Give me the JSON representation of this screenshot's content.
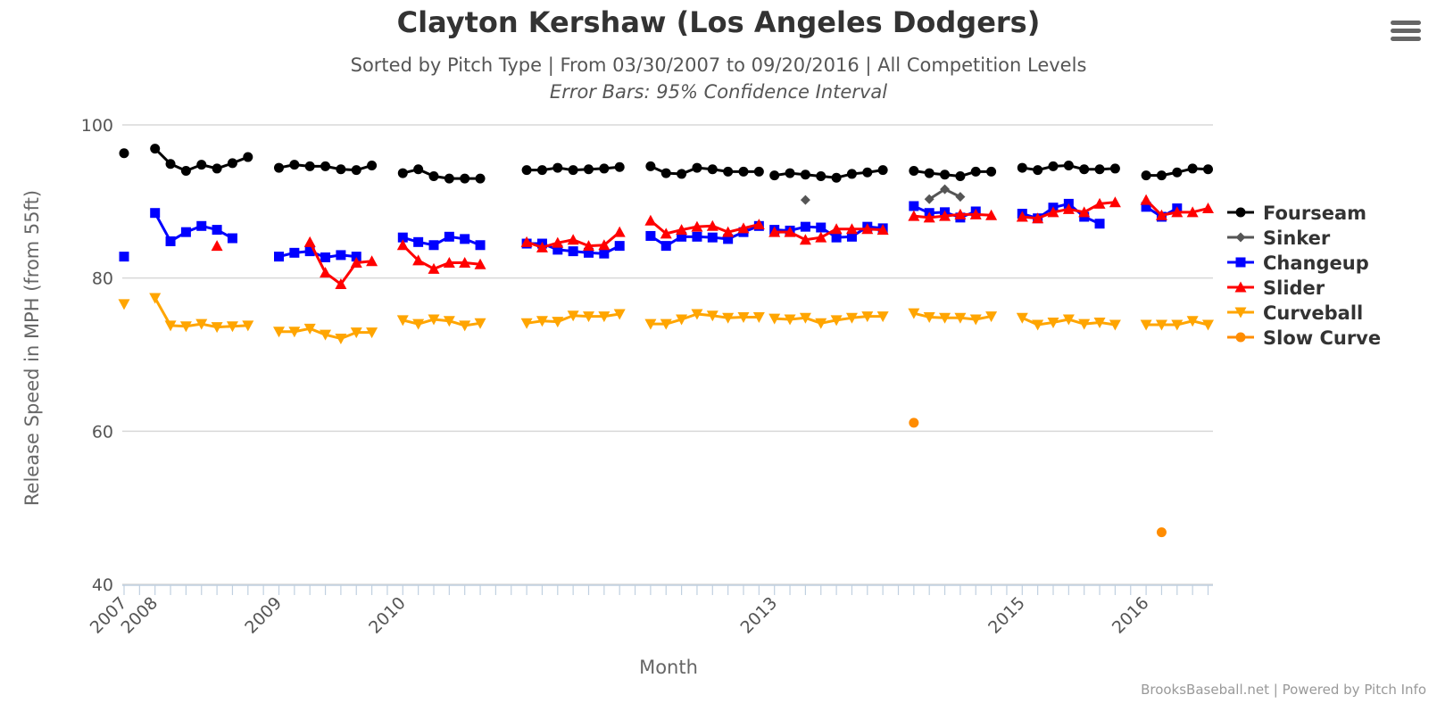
{
  "menu": {
    "icon": "hamburger-menu-icon"
  },
  "credits": "BrooksBaseball.net | Powered by Pitch Info",
  "chart_data": {
    "type": "line",
    "title": "Clayton Kershaw (Los Angeles Dodgers)",
    "subtitle": "Sorted by Pitch Type | From 03/30/2007 to 09/20/2016 | All Competition Levels",
    "subtitle2": "Error Bars: 95% Confidence Interval",
    "xlabel": "Month",
    "ylabel": "Release Speed in MPH (from 55ft)",
    "ylim": [
      40,
      100
    ],
    "yticks": [
      40,
      60,
      80,
      100
    ],
    "grid": true,
    "legend_position": "right",
    "x_slot_count": 70,
    "year_labels": [
      {
        "label": "2007",
        "slot": 0
      },
      {
        "label": "2008",
        "slot": 2
      },
      {
        "label": "2009",
        "slot": 10
      },
      {
        "label": "2010",
        "slot": 18
      },
      {
        "label": "2013",
        "slot": 42
      },
      {
        "label": "2015",
        "slot": 58
      },
      {
        "label": "2016",
        "slot": 66
      }
    ],
    "series": [
      {
        "name": "Fourseam",
        "color": "#000000",
        "marker": "circle",
        "segments": [
          [
            [
              0,
              96.3
            ]
          ],
          [
            [
              2,
              96.9
            ],
            [
              3,
              94.9
            ],
            [
              4,
              94.0
            ],
            [
              5,
              94.8
            ],
            [
              6,
              94.3
            ],
            [
              7,
              95.0
            ],
            [
              8,
              95.8
            ]
          ],
          [
            [
              10,
              94.4
            ],
            [
              11,
              94.8
            ],
            [
              12,
              94.6
            ],
            [
              13,
              94.6
            ],
            [
              14,
              94.2
            ],
            [
              15,
              94.1
            ],
            [
              16,
              94.7
            ]
          ],
          [
            [
              18,
              93.7
            ],
            [
              19,
              94.2
            ],
            [
              20,
              93.3
            ],
            [
              21,
              93.0
            ],
            [
              22,
              93.0
            ],
            [
              23,
              93.0
            ]
          ],
          [
            [
              26,
              94.1
            ],
            [
              27,
              94.1
            ],
            [
              28,
              94.4
            ],
            [
              29,
              94.1
            ],
            [
              30,
              94.2
            ],
            [
              31,
              94.3
            ],
            [
              32,
              94.5
            ]
          ],
          [
            [
              34,
              94.6
            ],
            [
              35,
              93.7
            ],
            [
              36,
              93.6
            ],
            [
              37,
              94.4
            ],
            [
              38,
              94.2
            ],
            [
              39,
              93.9
            ],
            [
              40,
              93.9
            ],
            [
              41,
              93.9
            ]
          ],
          [
            [
              42,
              93.4
            ],
            [
              43,
              93.7
            ],
            [
              44,
              93.5
            ],
            [
              45,
              93.3
            ],
            [
              46,
              93.1
            ],
            [
              47,
              93.6
            ],
            [
              48,
              93.8
            ],
            [
              49,
              94.1
            ]
          ],
          [
            [
              51,
              94.0
            ],
            [
              52,
              93.7
            ],
            [
              53,
              93.5
            ],
            [
              54,
              93.3
            ],
            [
              55,
              93.9
            ],
            [
              56,
              93.9
            ]
          ],
          [
            [
              58,
              94.4
            ],
            [
              59,
              94.1
            ],
            [
              60,
              94.6
            ],
            [
              61,
              94.7
            ],
            [
              62,
              94.2
            ],
            [
              63,
              94.2
            ],
            [
              64,
              94.3
            ]
          ],
          [
            [
              66,
              93.4
            ],
            [
              67,
              93.4
            ],
            [
              68,
              93.8
            ],
            [
              69,
              94.3
            ],
            [
              70,
              94.2
            ]
          ]
        ]
      },
      {
        "name": "Sinker",
        "color": "#555555",
        "marker": "diamond",
        "segments": [
          [
            [
              44,
              90.2
            ]
          ],
          [
            [
              52,
              90.3
            ],
            [
              53,
              91.6
            ],
            [
              54,
              90.6
            ]
          ]
        ]
      },
      {
        "name": "Changeup",
        "color": "#0000ff",
        "marker": "square",
        "segments": [
          [
            [
              0,
              82.8
            ]
          ],
          [
            [
              2,
              88.5
            ],
            [
              3,
              84.8
            ],
            [
              4,
              86.0
            ],
            [
              5,
              86.8
            ],
            [
              6,
              86.3
            ],
            [
              7,
              85.2
            ]
          ],
          [
            [
              10,
              82.8
            ],
            [
              11,
              83.3
            ],
            [
              12,
              83.5
            ],
            [
              13,
              82.7
            ],
            [
              14,
              83.0
            ],
            [
              15,
              82.8
            ]
          ],
          [
            [
              18,
              85.3
            ],
            [
              19,
              84.7
            ],
            [
              20,
              84.3
            ],
            [
              21,
              85.4
            ],
            [
              22,
              85.1
            ],
            [
              23,
              84.3
            ]
          ],
          [
            [
              26,
              84.5
            ],
            [
              27,
              84.5
            ],
            [
              28,
              83.7
            ],
            [
              29,
              83.5
            ],
            [
              30,
              83.3
            ],
            [
              31,
              83.2
            ],
            [
              32,
              84.2
            ]
          ],
          [
            [
              34,
              85.5
            ],
            [
              35,
              84.2
            ],
            [
              36,
              85.4
            ],
            [
              37,
              85.4
            ],
            [
              38,
              85.3
            ],
            [
              39,
              85.1
            ],
            [
              40,
              86.0
            ],
            [
              41,
              86.8
            ]
          ],
          [
            [
              42,
              86.3
            ],
            [
              43,
              86.2
            ],
            [
              44,
              86.7
            ],
            [
              45,
              86.6
            ],
            [
              46,
              85.3
            ],
            [
              47,
              85.4
            ],
            [
              48,
              86.7
            ],
            [
              49,
              86.5
            ]
          ],
          [
            [
              51,
              89.4
            ],
            [
              52,
              88.5
            ],
            [
              53,
              88.6
            ],
            [
              54,
              87.9
            ],
            [
              55,
              88.7
            ]
          ],
          [
            [
              58,
              88.4
            ],
            [
              59,
              87.8
            ],
            [
              60,
              89.2
            ],
            [
              61,
              89.7
            ],
            [
              62,
              88.0
            ],
            [
              63,
              87.1
            ]
          ],
          [
            [
              66,
              89.3
            ],
            [
              67,
              88.0
            ],
            [
              68,
              89.1
            ]
          ]
        ]
      },
      {
        "name": "Slider",
        "color": "#ff0000",
        "marker": "triangle",
        "segments": [
          [
            [
              6,
              84.2
            ]
          ],
          [
            [
              12,
              84.7
            ],
            [
              13,
              80.7
            ],
            [
              14,
              79.2
            ],
            [
              15,
              82.0
            ],
            [
              16,
              82.2
            ]
          ],
          [
            [
              18,
              84.3
            ],
            [
              19,
              82.3
            ],
            [
              20,
              81.2
            ],
            [
              21,
              82.0
            ],
            [
              22,
              82.0
            ],
            [
              23,
              81.8
            ]
          ],
          [
            [
              26,
              84.7
            ],
            [
              27,
              84.0
            ],
            [
              28,
              84.6
            ],
            [
              29,
              85.0
            ],
            [
              30,
              84.2
            ],
            [
              31,
              84.3
            ],
            [
              32,
              86.0
            ]
          ],
          [
            [
              34,
              87.5
            ],
            [
              35,
              85.8
            ],
            [
              36,
              86.3
            ],
            [
              37,
              86.7
            ],
            [
              38,
              86.8
            ],
            [
              39,
              86.0
            ],
            [
              40,
              86.5
            ],
            [
              41,
              87.0
            ]
          ],
          [
            [
              42,
              86.0
            ],
            [
              43,
              86.0
            ],
            [
              44,
              85.0
            ],
            [
              45,
              85.3
            ],
            [
              46,
              86.4
            ],
            [
              47,
              86.4
            ],
            [
              48,
              86.4
            ],
            [
              49,
              86.3
            ]
          ],
          [
            [
              51,
              88.1
            ],
            [
              52,
              87.9
            ],
            [
              53,
              88.1
            ],
            [
              54,
              88.3
            ],
            [
              55,
              88.3
            ],
            [
              56,
              88.2
            ]
          ],
          [
            [
              58,
              88.0
            ],
            [
              59,
              87.8
            ],
            [
              60,
              88.6
            ],
            [
              61,
              89.0
            ],
            [
              62,
              88.6
            ],
            [
              63,
              89.7
            ],
            [
              64,
              89.9
            ]
          ],
          [
            [
              66,
              90.2
            ],
            [
              67,
              88.2
            ],
            [
              68,
              88.6
            ],
            [
              69,
              88.6
            ],
            [
              70,
              89.1
            ]
          ]
        ]
      },
      {
        "name": "Curveball",
        "color": "#ffa500",
        "marker": "triangle-down",
        "segments": [
          [
            [
              0,
              76.6
            ]
          ],
          [
            [
              2,
              77.4
            ],
            [
              3,
              73.8
            ],
            [
              4,
              73.7
            ],
            [
              5,
              74.0
            ],
            [
              6,
              73.6
            ],
            [
              7,
              73.7
            ],
            [
              8,
              73.8
            ]
          ],
          [
            [
              10,
              73.0
            ],
            [
              11,
              73.0
            ],
            [
              12,
              73.4
            ],
            [
              13,
              72.6
            ],
            [
              14,
              72.1
            ],
            [
              15,
              72.9
            ],
            [
              16,
              72.9
            ]
          ],
          [
            [
              18,
              74.5
            ],
            [
              19,
              74.0
            ],
            [
              20,
              74.6
            ],
            [
              21,
              74.4
            ],
            [
              22,
              73.8
            ],
            [
              23,
              74.1
            ]
          ],
          [
            [
              26,
              74.1
            ],
            [
              27,
              74.4
            ],
            [
              28,
              74.3
            ],
            [
              29,
              75.1
            ],
            [
              30,
              75.0
            ],
            [
              31,
              75.0
            ],
            [
              32,
              75.3
            ]
          ],
          [
            [
              34,
              74.0
            ],
            [
              35,
              74.0
            ],
            [
              36,
              74.6
            ],
            [
              37,
              75.3
            ],
            [
              38,
              75.1
            ],
            [
              39,
              74.8
            ],
            [
              40,
              74.9
            ],
            [
              41,
              74.9
            ]
          ],
          [
            [
              42,
              74.7
            ],
            [
              43,
              74.6
            ],
            [
              44,
              74.8
            ],
            [
              45,
              74.1
            ],
            [
              46,
              74.5
            ],
            [
              47,
              74.8
            ],
            [
              48,
              75.0
            ],
            [
              49,
              75.0
            ]
          ],
          [
            [
              51,
              75.4
            ],
            [
              52,
              74.9
            ],
            [
              53,
              74.8
            ],
            [
              54,
              74.8
            ],
            [
              55,
              74.6
            ],
            [
              56,
              75.0
            ]
          ],
          [
            [
              58,
              74.8
            ],
            [
              59,
              73.9
            ],
            [
              60,
              74.2
            ],
            [
              61,
              74.6
            ],
            [
              62,
              74.0
            ],
            [
              63,
              74.2
            ],
            [
              64,
              73.9
            ]
          ],
          [
            [
              66,
              73.9
            ],
            [
              67,
              73.9
            ],
            [
              68,
              73.9
            ],
            [
              69,
              74.4
            ],
            [
              70,
              73.9
            ]
          ]
        ]
      },
      {
        "name": "Slow Curve",
        "color": "#ff8c00",
        "marker": "circle",
        "segments": [
          [
            [
              51,
              61.1
            ]
          ],
          [
            [
              67,
              46.8
            ]
          ]
        ]
      }
    ]
  }
}
